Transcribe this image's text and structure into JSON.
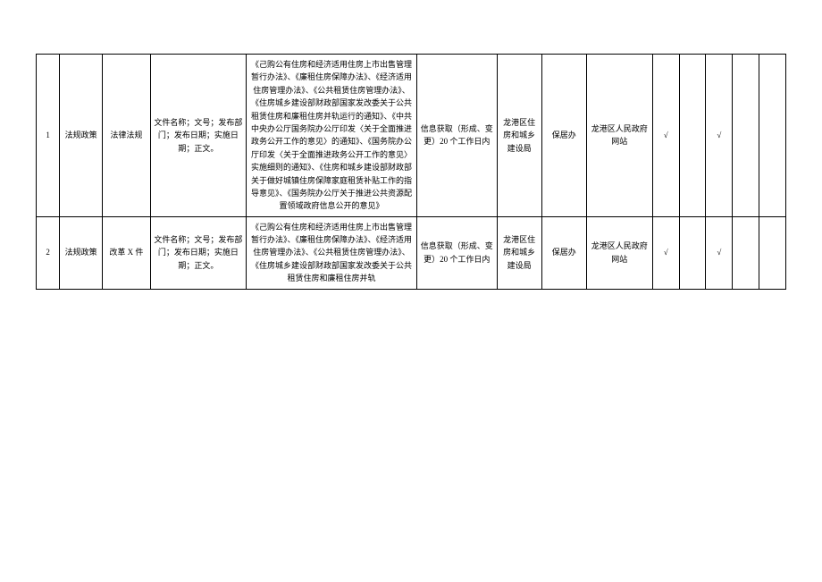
{
  "rows": [
    {
      "index": "1",
      "category": "法规政策",
      "type": "法律法规",
      "fileInfo": "文件名称；文号；发布部门；发布日期；实施日期；正文。",
      "basis": "《己购公有住房和经济适用住房上市出售管理暂行办法》、《廉租住房保障办法》、《经济适用住房管理办法》、《公共租赁住房管理办法》、《住房城乡建设部财政部国家发改委关于公共租赁住房和廉租住房并轨运行的通知》、《中共中央办公厅国务院办公厅印发〈关于全面推进政务公开工作的意见〉的通知》、《国务院办公厅印发〈关于全面推进政务公开工作的意见〉实施细则的通知》、《住房和城乡建设部财政部关于做好城镇住房保障家庭租赁补贴工作的指导意见》、《国务院办公厅关于推进公共资源配置领域政府信息公开的意见》",
      "timing": "信息获取（形成、变更）20 个工作日内",
      "unit": "龙港区住房和城乡建设局",
      "responsible": "保居办",
      "channel": "龙港区人民政府网站",
      "m1": "√",
      "m2": "",
      "m3": "√",
      "m4": "",
      "m5": ""
    },
    {
      "index": "2",
      "category": "法规政策",
      "type": "改革 X 件",
      "fileInfo": "文件名称；文号；发布部门；发布日期；实施日期；正文。",
      "basis": "《己购公有住房和经济适用住房上市出售管理暂行办法》、《廉租住房保障办法》、《经济适用住房管理办法》、《公共租赁住房管理办法》、《住房城乡建设部财政部国家发改委关于公共租赁住房和廉租住房并轨",
      "timing": "信息获取（形成、变更）20 个工作日内",
      "unit": "龙港区住房和城乡建设局",
      "responsible": "保居办",
      "channel": "龙港区人民政府网站",
      "m1": "√",
      "m2": "",
      "m3": "√",
      "m4": "",
      "m5": ""
    }
  ]
}
